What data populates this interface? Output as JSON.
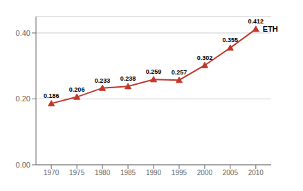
{
  "chart_data": {
    "type": "line",
    "x": [
      1970,
      1975,
      1980,
      1985,
      1990,
      1995,
      2000,
      2005,
      2010
    ],
    "values": [
      0.186,
      0.206,
      0.233,
      0.238,
      0.259,
      0.257,
      0.302,
      0.355,
      0.412
    ],
    "color": "#c0392b",
    "marker": "triangle",
    "xlim": [
      1967,
      2013
    ],
    "xticks": [
      1970,
      1975,
      1980,
      1985,
      1990,
      1995,
      2000,
      2005,
      2010
    ],
    "ylim": [
      0.0,
      0.45
    ],
    "yticks": [
      {
        "value": 0.0,
        "label": "0.00"
      },
      {
        "value": 0.2,
        "label": "0.20"
      },
      {
        "value": 0.4,
        "label": "0.40"
      }
    ],
    "grid": true,
    "data_labels": true,
    "annotations": [
      {
        "text": "ETH"
      }
    ]
  }
}
